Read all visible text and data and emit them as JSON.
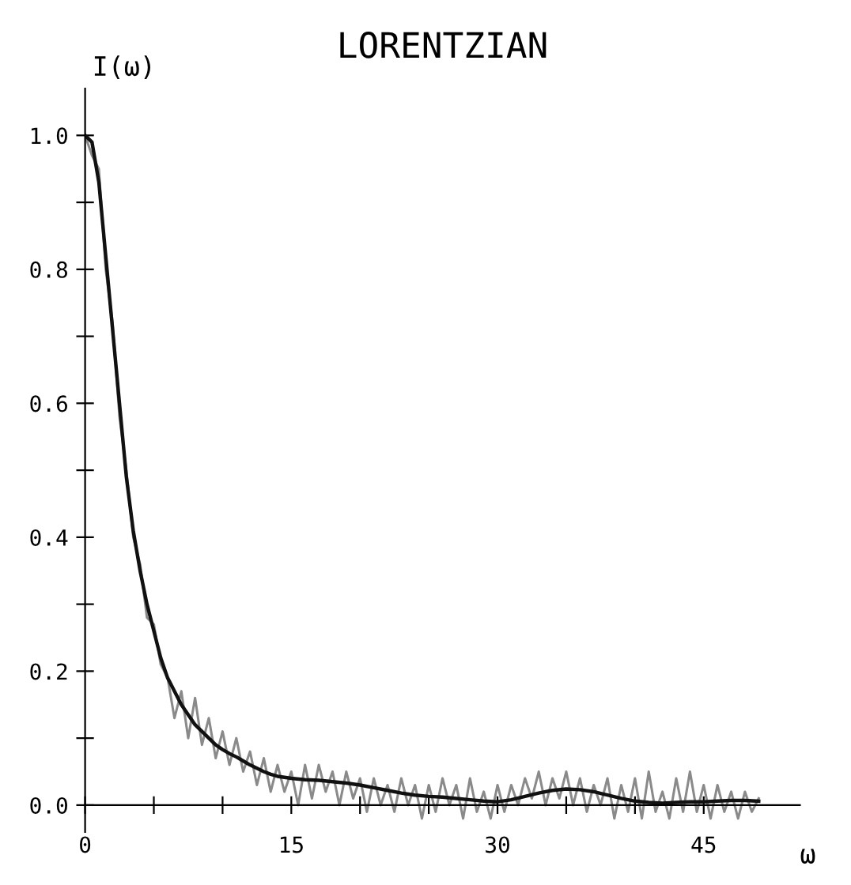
{
  "chart_data": {
    "type": "line",
    "title": "LORENTZIAN",
    "ylabel": "I(ω)",
    "xlabel": "ω",
    "xlim": [
      0,
      52
    ],
    "ylim": [
      -0.04,
      1.07
    ],
    "xticks": [
      0,
      {
        "value": 5,
        "label": null
      },
      {
        "value": 10,
        "label": null
      },
      15,
      {
        "value": 20,
        "label": null
      },
      {
        "value": 25,
        "label": null
      },
      30,
      {
        "value": 35,
        "label": null
      },
      {
        "value": 40,
        "label": null
      },
      45
    ],
    "yticks": [
      {
        "value": 0,
        "label": "0.0"
      },
      {
        "value": 0.1,
        "label": null
      },
      {
        "value": 0.2,
        "label": "0.2"
      },
      {
        "value": 0.3,
        "label": null
      },
      {
        "value": 0.4,
        "label": "0.4"
      },
      {
        "value": 0.5,
        "label": null
      },
      {
        "value": 0.6,
        "label": "0.6"
      },
      {
        "value": 0.7,
        "label": null
      },
      {
        "value": 0.8,
        "label": "0.8"
      },
      {
        "value": 0.9,
        "label": null
      },
      {
        "value": 1.0,
        "label": "1.0"
      }
    ],
    "grid": false,
    "legend": false,
    "marker": "none",
    "line_style": "solid",
    "series": [
      {
        "color": "#8a8a8a",
        "x": [
          0,
          0.5,
          1,
          1.5,
          2,
          2.5,
          3,
          3.5,
          4,
          4.5,
          5,
          5.5,
          6,
          6.5,
          7,
          7.5,
          8,
          8.5,
          9,
          9.5,
          10,
          10.5,
          11,
          11.5,
          12,
          12.5,
          13,
          13.5,
          14,
          14.5,
          15,
          15.5,
          16,
          16.5,
          17,
          17.5,
          18,
          18.5,
          19,
          19.5,
          20,
          20.5,
          21,
          21.5,
          22,
          22.5,
          23,
          23.5,
          24,
          24.5,
          25,
          25.5,
          26,
          26.5,
          27,
          27.5,
          28,
          28.5,
          29,
          29.5,
          30,
          30.5,
          31,
          31.5,
          32,
          32.5,
          33,
          33.5,
          34,
          34.5,
          35,
          35.5,
          36,
          36.5,
          37,
          37.5,
          38,
          38.5,
          39,
          39.5,
          40,
          40.5,
          41,
          41.5,
          42,
          42.5,
          43,
          43.5,
          44,
          44.5,
          45,
          45.5,
          46,
          46.5,
          47,
          47.5,
          48,
          48.5,
          49
        ],
        "values": [
          1.0,
          0.97,
          0.95,
          0.8,
          0.72,
          0.58,
          0.5,
          0.4,
          0.36,
          0.28,
          0.27,
          0.21,
          0.19,
          0.13,
          0.17,
          0.1,
          0.16,
          0.09,
          0.13,
          0.07,
          0.11,
          0.06,
          0.1,
          0.05,
          0.08,
          0.03,
          0.07,
          0.02,
          0.06,
          0.02,
          0.05,
          0.0,
          0.06,
          0.01,
          0.06,
          0.02,
          0.05,
          0.0,
          0.05,
          0.01,
          0.04,
          -0.01,
          0.04,
          0.0,
          0.03,
          -0.01,
          0.04,
          0.0,
          0.03,
          -0.02,
          0.03,
          -0.01,
          0.04,
          0.0,
          0.03,
          -0.02,
          0.04,
          -0.01,
          0.02,
          -0.02,
          0.03,
          -0.01,
          0.03,
          0.0,
          0.04,
          0.01,
          0.05,
          0.0,
          0.04,
          0.01,
          0.05,
          0.0,
          0.04,
          -0.01,
          0.03,
          0.0,
          0.04,
          -0.02,
          0.03,
          -0.01,
          0.04,
          -0.02,
          0.05,
          -0.01,
          0.02,
          -0.02,
          0.04,
          -0.01,
          0.05,
          -0.01,
          0.03,
          -0.02,
          0.03,
          -0.01,
          0.02,
          -0.02,
          0.02,
          -0.01,
          0.01
        ]
      },
      {
        "color": "#111111",
        "x": [
          0,
          0.5,
          1,
          1.5,
          2,
          2.5,
          3,
          3.5,
          4,
          4.5,
          5,
          5.5,
          6,
          6.5,
          7,
          7.5,
          8,
          8.5,
          9,
          9.5,
          10,
          10.5,
          11,
          11.5,
          12,
          12.5,
          13,
          13.5,
          14,
          15,
          16,
          17,
          18,
          19,
          20,
          21,
          22,
          23,
          24,
          25,
          26,
          27,
          28,
          29,
          30,
          31,
          32,
          33,
          34,
          35,
          36,
          37,
          38,
          39,
          40,
          41,
          42,
          43,
          44,
          45,
          46,
          47,
          48,
          49
        ],
        "values": [
          1.0,
          0.99,
          0.93,
          0.82,
          0.71,
          0.6,
          0.49,
          0.41,
          0.35,
          0.3,
          0.26,
          0.22,
          0.19,
          0.17,
          0.15,
          0.135,
          0.12,
          0.11,
          0.1,
          0.09,
          0.083,
          0.077,
          0.072,
          0.066,
          0.06,
          0.055,
          0.05,
          0.046,
          0.043,
          0.04,
          0.038,
          0.037,
          0.035,
          0.033,
          0.03,
          0.026,
          0.022,
          0.018,
          0.015,
          0.013,
          0.012,
          0.01,
          0.008,
          0.006,
          0.005,
          0.008,
          0.013,
          0.018,
          0.022,
          0.024,
          0.023,
          0.02,
          0.015,
          0.01,
          0.006,
          0.004,
          0.003,
          0.004,
          0.005,
          0.005,
          0.006,
          0.007,
          0.007,
          0.006
        ]
      }
    ]
  }
}
